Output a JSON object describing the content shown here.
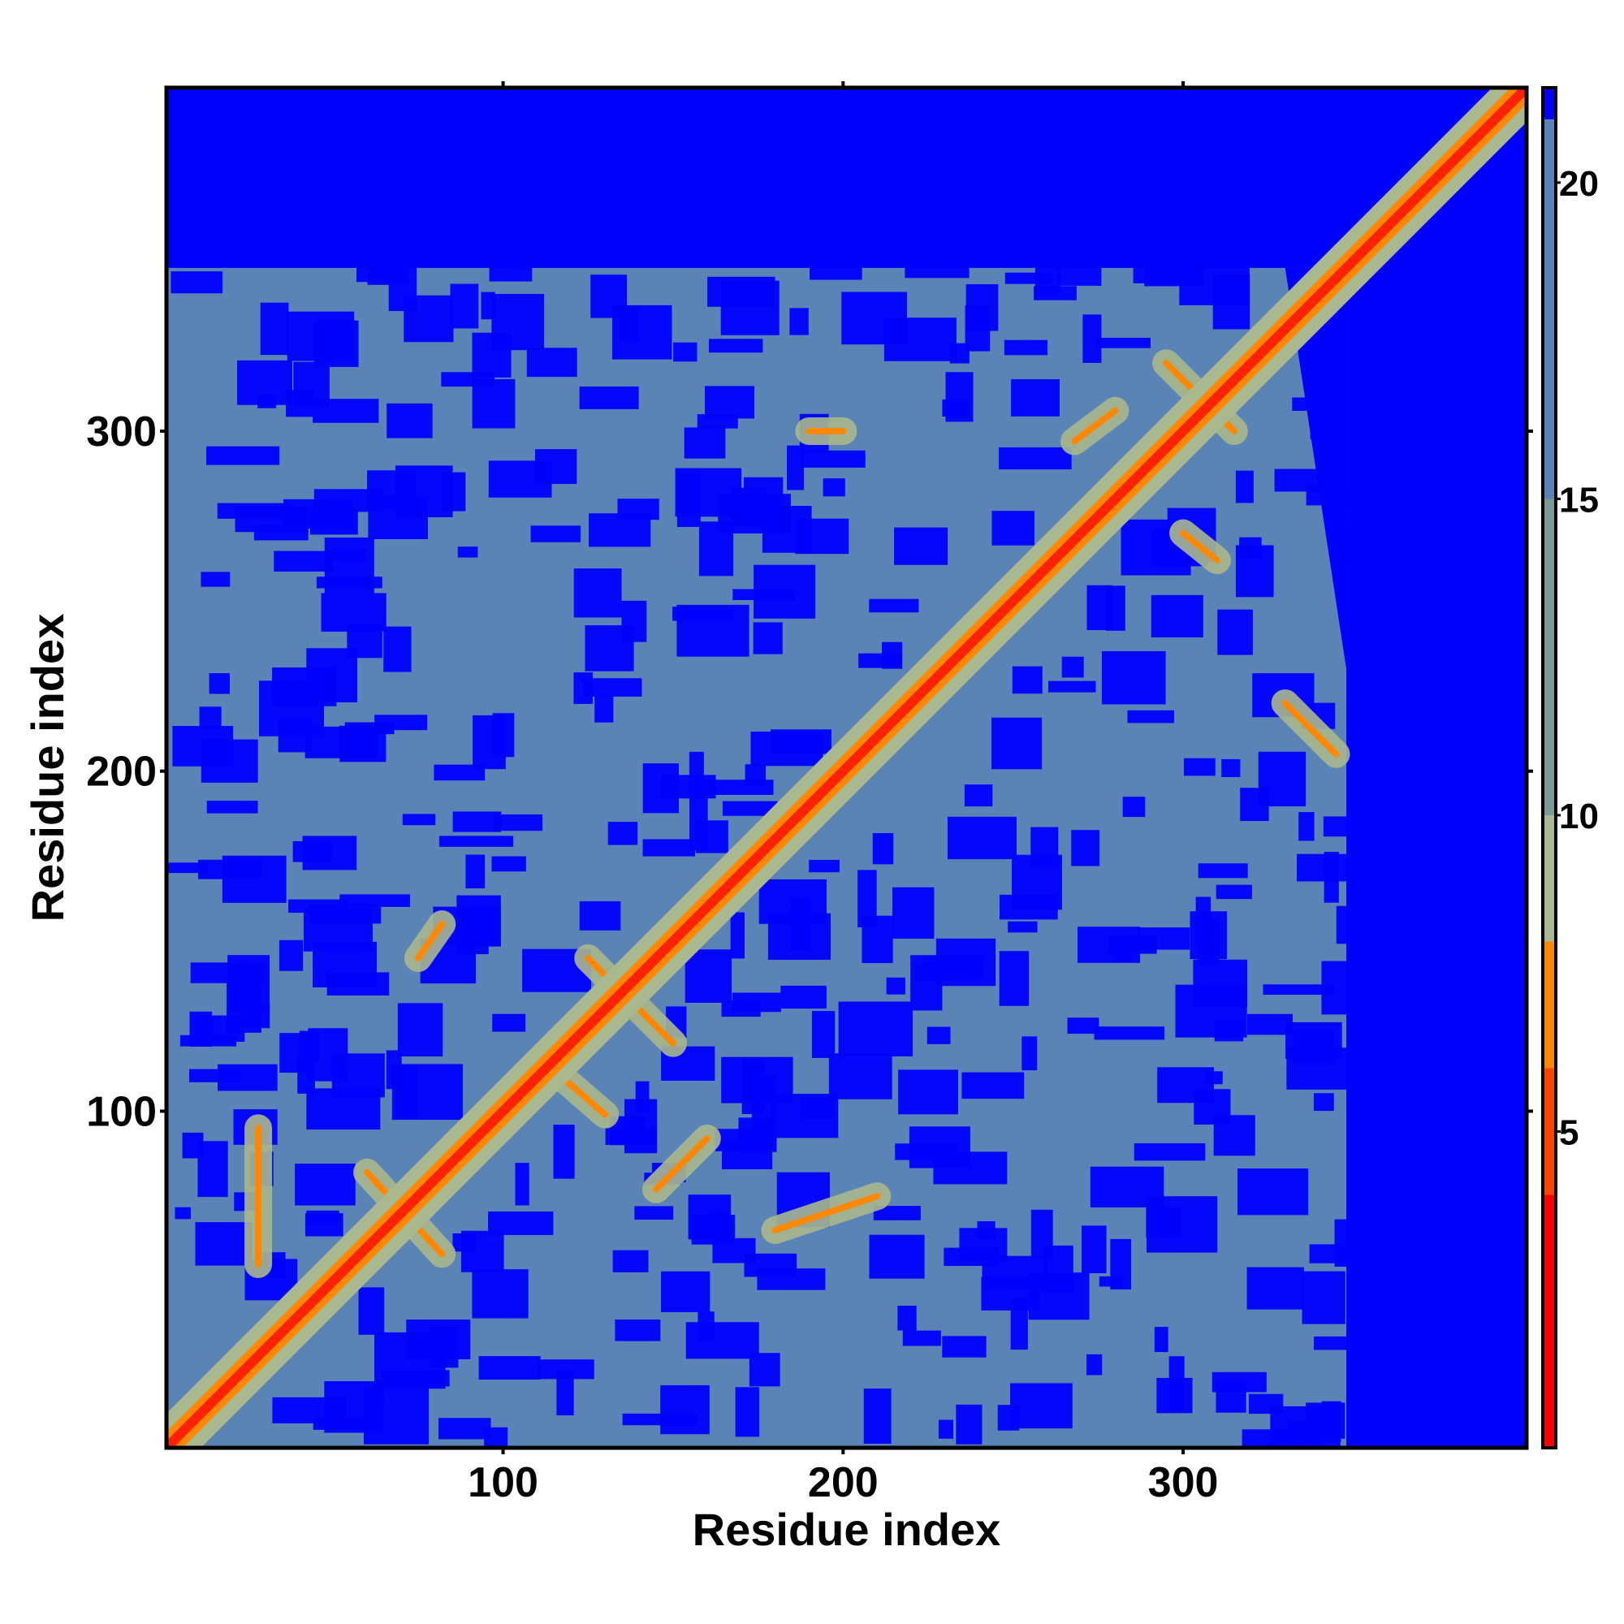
{
  "chart_data": {
    "type": "heatmap",
    "title": "",
    "xlabel": "Residue index",
    "ylabel": "Residue index",
    "xlim": [
      1,
      401
    ],
    "ylim": [
      1,
      401
    ],
    "x_ticks": [
      100,
      200,
      300
    ],
    "y_ticks": [
      100,
      200,
      300
    ],
    "colorbar": {
      "ticks": [
        5,
        10,
        15,
        20
      ],
      "range": [
        0,
        21.5
      ],
      "colors": [
        {
          "from": 0,
          "to": 4,
          "color": "#ff0000"
        },
        {
          "from": 4,
          "to": 6,
          "color": "#ff4400"
        },
        {
          "from": 6,
          "to": 8,
          "color": "#ff8800"
        },
        {
          "from": 8,
          "to": 10,
          "color": "#a9b88e"
        },
        {
          "from": 10,
          "to": 15,
          "color": "#7a9a98"
        },
        {
          "from": 15,
          "to": 21,
          "color": "#5b84b6"
        },
        {
          "from": 21,
          "to": 21.5,
          "color": "#0000ff"
        }
      ]
    },
    "background_color": "#0000ff",
    "contact_region_color": "#5b84b6",
    "diagonal_color": "#ff2200",
    "contact_region_extent": {
      "x": [
        1,
        348
      ],
      "y": [
        1,
        348
      ]
    },
    "main_diagonal": {
      "from": [
        1,
        1
      ],
      "to": [
        401,
        401
      ]
    },
    "contact_features": [
      {
        "x1": 60,
        "y1": 82,
        "x2": 82,
        "y2": 58
      },
      {
        "x1": 125,
        "y1": 145,
        "x2": 150,
        "y2": 120
      },
      {
        "x1": 115,
        "y1": 112,
        "x2": 130,
        "y2": 99
      },
      {
        "x1": 145,
        "y1": 77,
        "x2": 160,
        "y2": 92
      },
      {
        "x1": 295,
        "y1": 320,
        "x2": 315,
        "y2": 300
      },
      {
        "x1": 268,
        "y1": 297,
        "x2": 280,
        "y2": 306
      },
      {
        "x1": 310,
        "y1": 262,
        "x2": 300,
        "y2": 270
      },
      {
        "x1": 225,
        "y1": 225,
        "x2": 255,
        "y2": 255
      },
      {
        "x1": 75,
        "y1": 145,
        "x2": 82,
        "y2": 155
      },
      {
        "x1": 28,
        "y1": 55,
        "x2": 28,
        "y2": 95
      },
      {
        "x1": 190,
        "y1": 300,
        "x2": 200,
        "y2": 300
      },
      {
        "x1": 180,
        "y1": 65,
        "x2": 210,
        "y2": 75
      },
      {
        "x1": 330,
        "y1": 220,
        "x2": 345,
        "y2": 205
      }
    ]
  }
}
